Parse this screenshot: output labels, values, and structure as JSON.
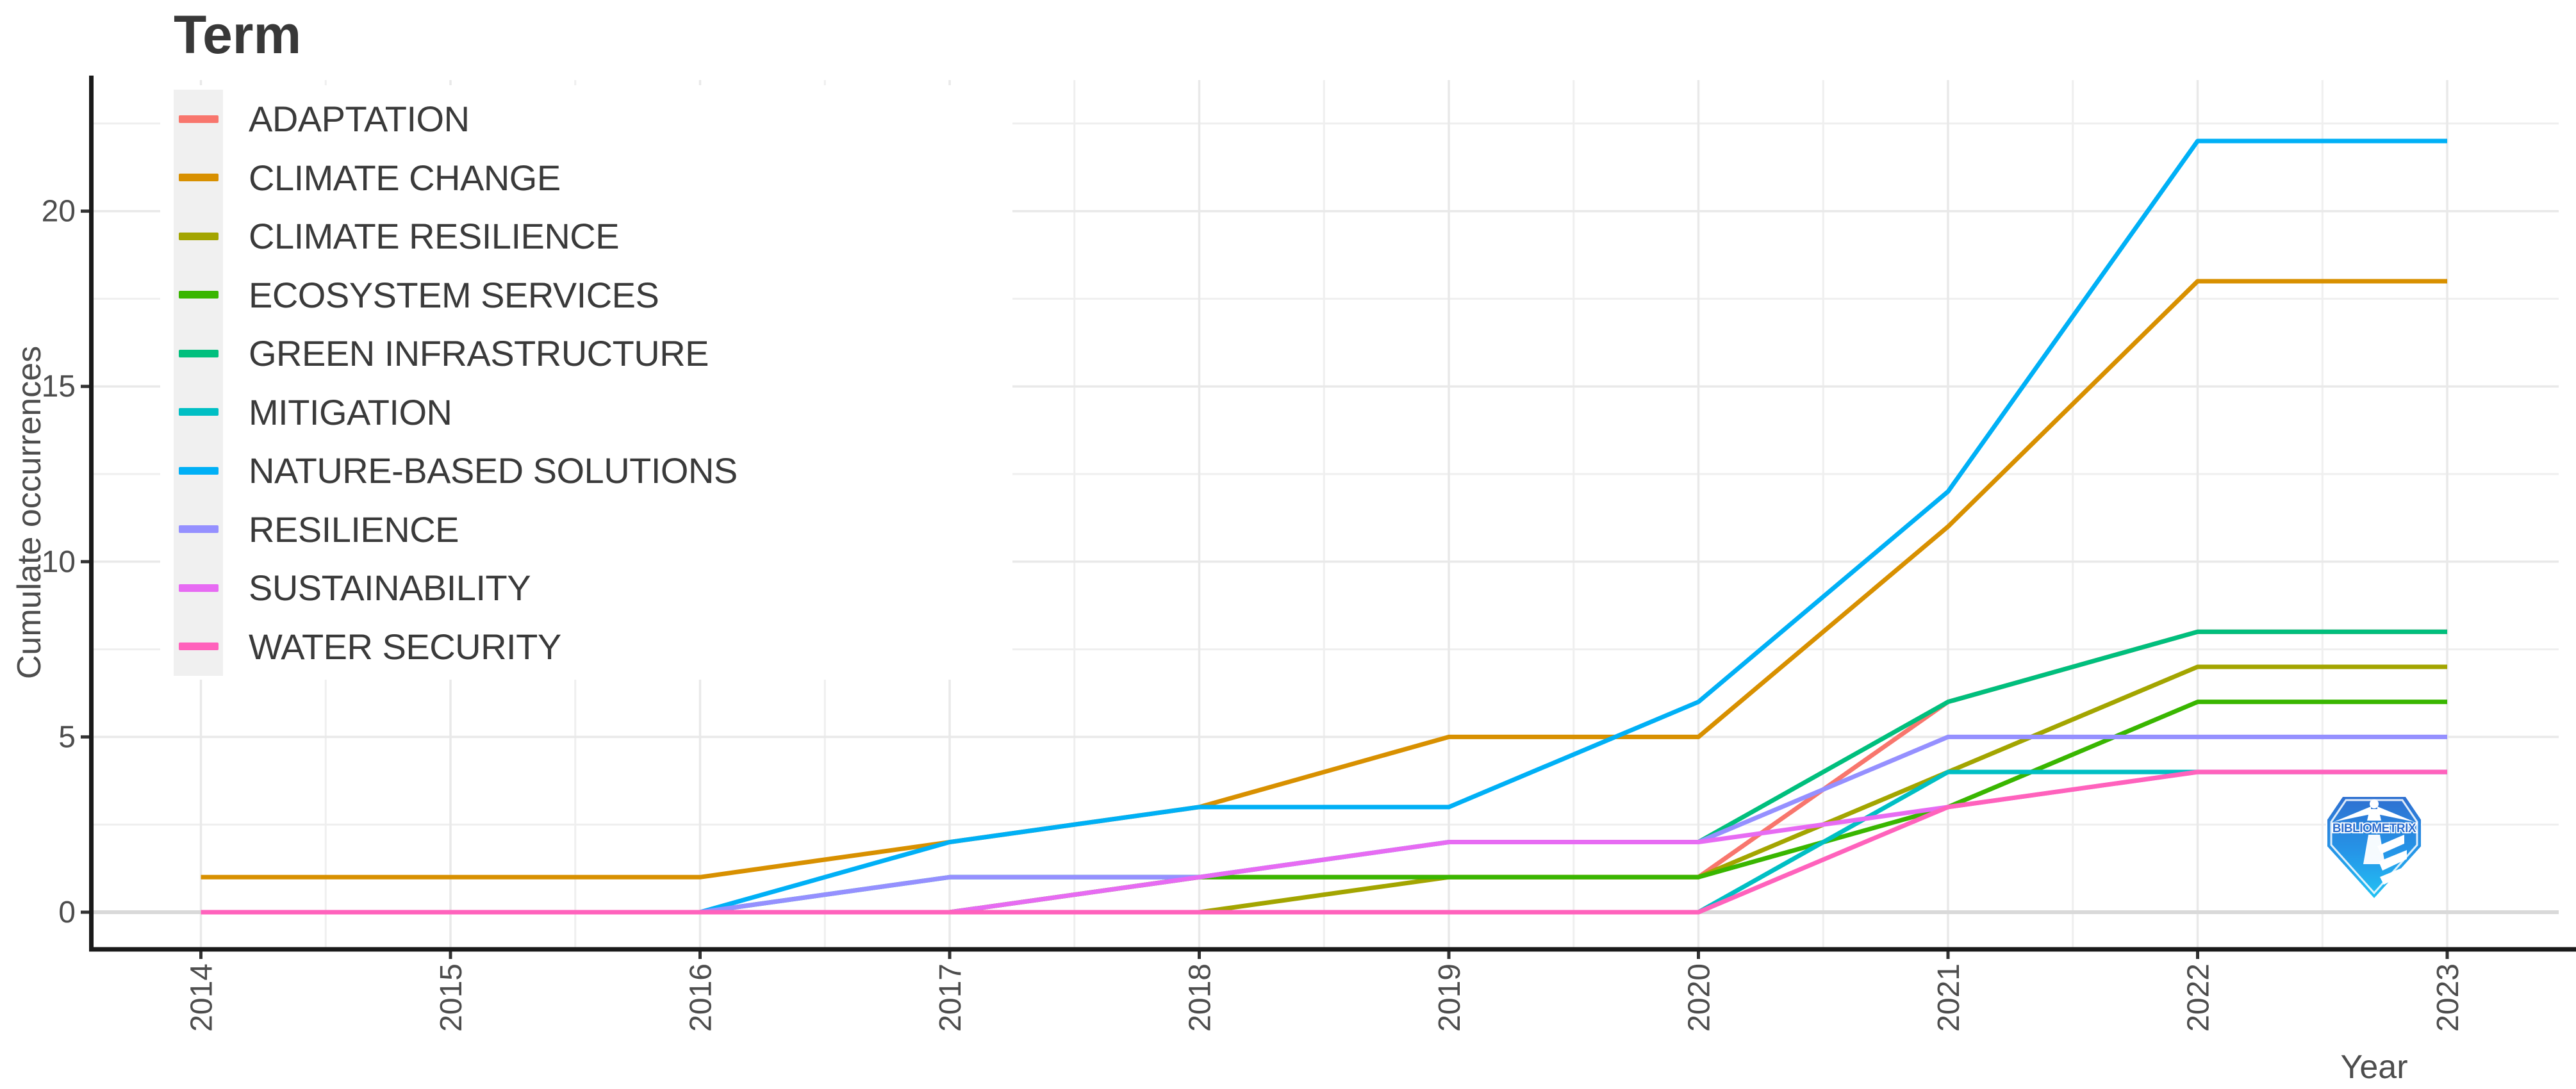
{
  "legend": {
    "title": "Term"
  },
  "logo": {
    "text": "BIBLIOMETRIX"
  },
  "chart_data": {
    "type": "line",
    "title": "",
    "xlabel": "Year",
    "ylabel": "Cumulate occurrences",
    "x": [
      2014,
      2015,
      2016,
      2017,
      2018,
      2019,
      2020,
      2021,
      2022,
      2023
    ],
    "y_ticks": [
      0,
      5,
      10,
      15,
      20
    ],
    "ylim": [
      0,
      23.5
    ],
    "grid": "major and minor light-gray gridlines on white background",
    "legend_position": "inside-top-left",
    "x_tick_label_rotation_deg": 90,
    "axis_color": "#1A1A1A",
    "tick_label_color": "#4D4D4D",
    "series": [
      {
        "name": "ADAPTATION",
        "color": "#F8766D",
        "values": [
          0,
          0,
          0,
          0,
          1,
          1,
          1,
          6,
          8,
          8
        ]
      },
      {
        "name": "CLIMATE CHANGE",
        "color": "#D89000",
        "values": [
          1,
          1,
          1,
          2,
          3,
          5,
          5,
          11,
          18,
          18
        ]
      },
      {
        "name": "CLIMATE RESILIENCE",
        "color": "#A3A500",
        "values": [
          0,
          0,
          0,
          0,
          0,
          1,
          1,
          4,
          7,
          7
        ]
      },
      {
        "name": "ECOSYSTEM SERVICES",
        "color": "#39B600",
        "values": [
          0,
          0,
          0,
          0,
          1,
          1,
          1,
          3,
          6,
          6
        ]
      },
      {
        "name": "GREEN INFRASTRUCTURE",
        "color": "#00BF7D",
        "values": [
          0,
          0,
          0,
          1,
          1,
          2,
          2,
          6,
          8,
          8
        ]
      },
      {
        "name": "MITIGATION",
        "color": "#00BFC4",
        "values": [
          0,
          0,
          0,
          0,
          0,
          0,
          0,
          4,
          4,
          4
        ]
      },
      {
        "name": "NATURE-BASED SOLUTIONS",
        "color": "#00B0F6",
        "values": [
          0,
          0,
          0,
          2,
          3,
          3,
          6,
          12,
          22,
          22
        ]
      },
      {
        "name": "RESILIENCE",
        "color": "#9590FF",
        "values": [
          0,
          0,
          0,
          1,
          1,
          2,
          2,
          5,
          5,
          5
        ]
      },
      {
        "name": "SUSTAINABILITY",
        "color": "#E76BF3",
        "values": [
          0,
          0,
          0,
          0,
          1,
          2,
          2,
          3,
          4,
          4
        ]
      },
      {
        "name": "WATER SECURITY",
        "color": "#FF62BC",
        "values": [
          0,
          0,
          0,
          0,
          0,
          0,
          0,
          3,
          4,
          4
        ]
      }
    ]
  }
}
